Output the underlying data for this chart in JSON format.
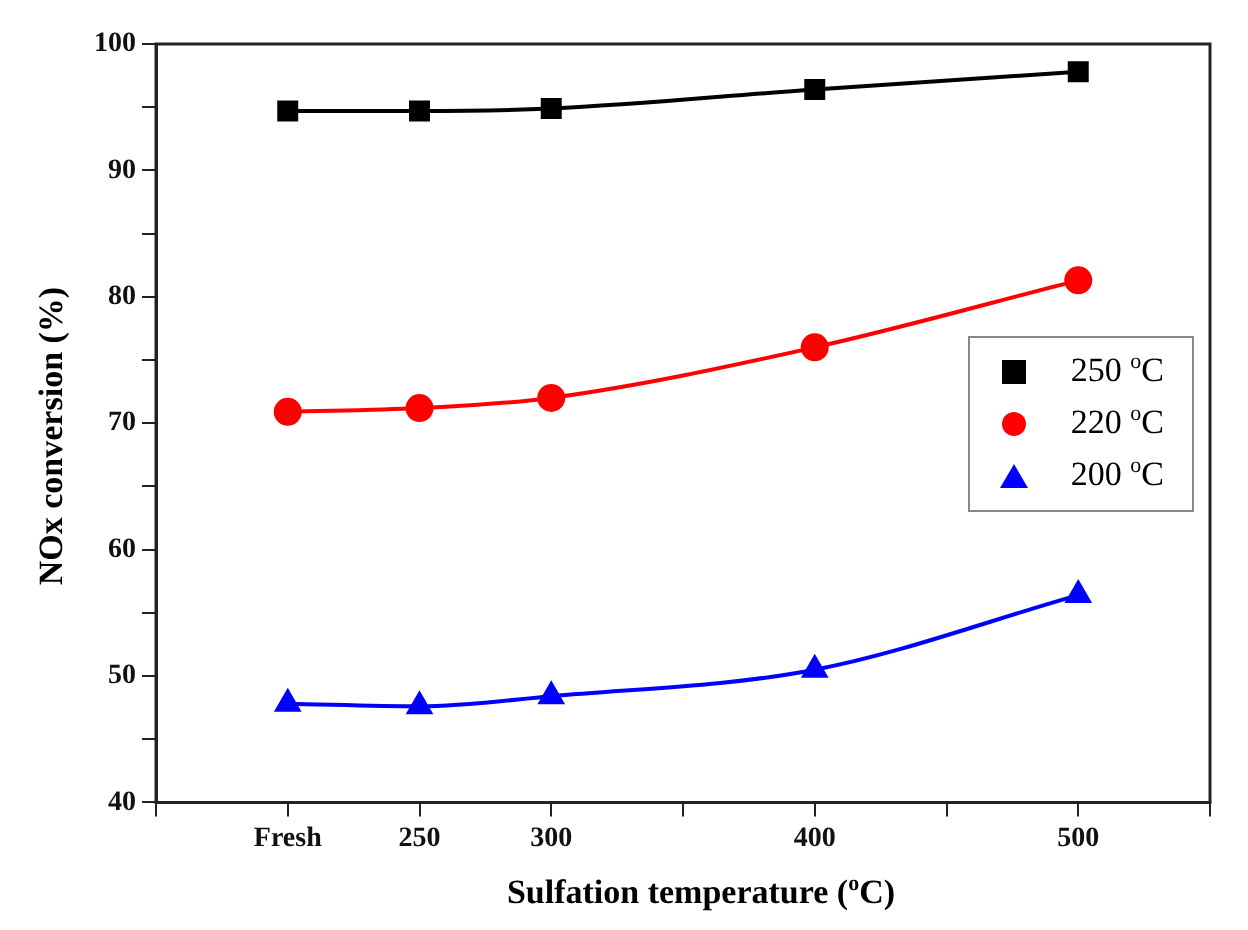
{
  "chart_data": {
    "type": "line",
    "xlabel": "Sulfation temperature ($^{o}$C)",
    "ylabel": "NOx conversion (%)",
    "x": [
      200,
      250,
      300,
      400,
      500
    ],
    "xlim": [
      150,
      550
    ],
    "xticks": [
      {
        "value": 150,
        "label": null
      },
      {
        "value": 200,
        "label": "Fresh"
      },
      250,
      300,
      {
        "value": 350,
        "label": null
      },
      400,
      {
        "value": 450,
        "label": null
      },
      500,
      {
        "value": 550,
        "label": null
      }
    ],
    "ylim": [
      40,
      100
    ],
    "yticks": [
      40,
      {
        "value": 45,
        "label": null
      },
      50,
      {
        "value": 55,
        "label": null
      },
      60,
      {
        "value": 65,
        "label": null
      },
      70,
      {
        "value": 75,
        "label": null
      },
      80,
      {
        "value": 85,
        "label": null
      },
      90,
      {
        "value": 95,
        "label": null
      },
      100
    ],
    "series": [
      {
        "name": "250 $^{o}$C",
        "color": "#000000",
        "marker": "square",
        "values": [
          94.7,
          94.7,
          94.9,
          96.4,
          97.8
        ]
      },
      {
        "name": "220 $^{o}$C",
        "color": "#ff0000",
        "marker": "circle",
        "values": [
          70.9,
          71.2,
          72.0,
          76.0,
          81.3
        ]
      },
      {
        "name": "200 $^{o}$C",
        "color": "#0000ff",
        "marker": "triangle",
        "values": [
          47.8,
          47.6,
          48.4,
          50.5,
          56.4
        ]
      }
    ],
    "grid": false,
    "legend": "right",
    "line_style": "solid"
  }
}
